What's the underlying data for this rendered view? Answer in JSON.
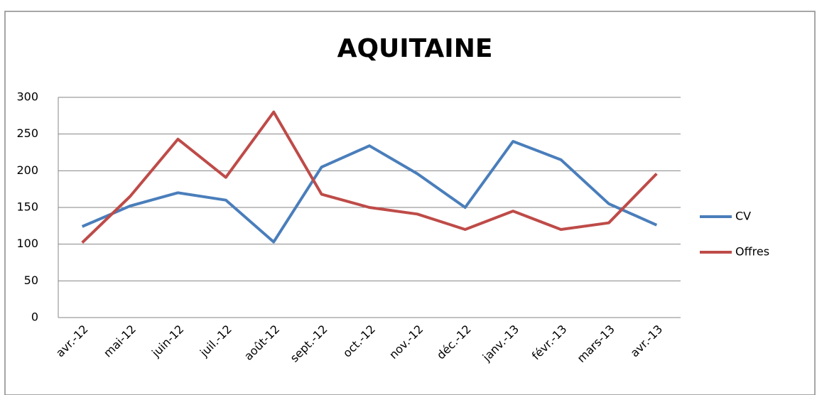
{
  "chart_data": {
    "type": "line",
    "title": "AQUITAINE",
    "categories": [
      "avr.-12",
      "mai-12",
      "juin-12",
      "juil.-12",
      "août-12",
      "sept.-12",
      "oct.-12",
      "nov.-12",
      "déc.-12",
      "janv.-13",
      "févr.-13",
      "mars-13",
      "avr.-13"
    ],
    "series": [
      {
        "name": "CV",
        "color": "#4a7ebb",
        "values": [
          124,
          152,
          170,
          160,
          103,
          205,
          234,
          196,
          150,
          240,
          215,
          155,
          126
        ]
      },
      {
        "name": "Offres",
        "color": "#be4b48",
        "values": [
          102,
          165,
          243,
          191,
          280,
          168,
          150,
          141,
          120,
          145,
          120,
          129,
          196
        ]
      }
    ],
    "ylim": [
      0,
      300
    ],
    "yticks": [
      0,
      50,
      100,
      150,
      200,
      250,
      300
    ],
    "grid": true,
    "legend": "right"
  }
}
